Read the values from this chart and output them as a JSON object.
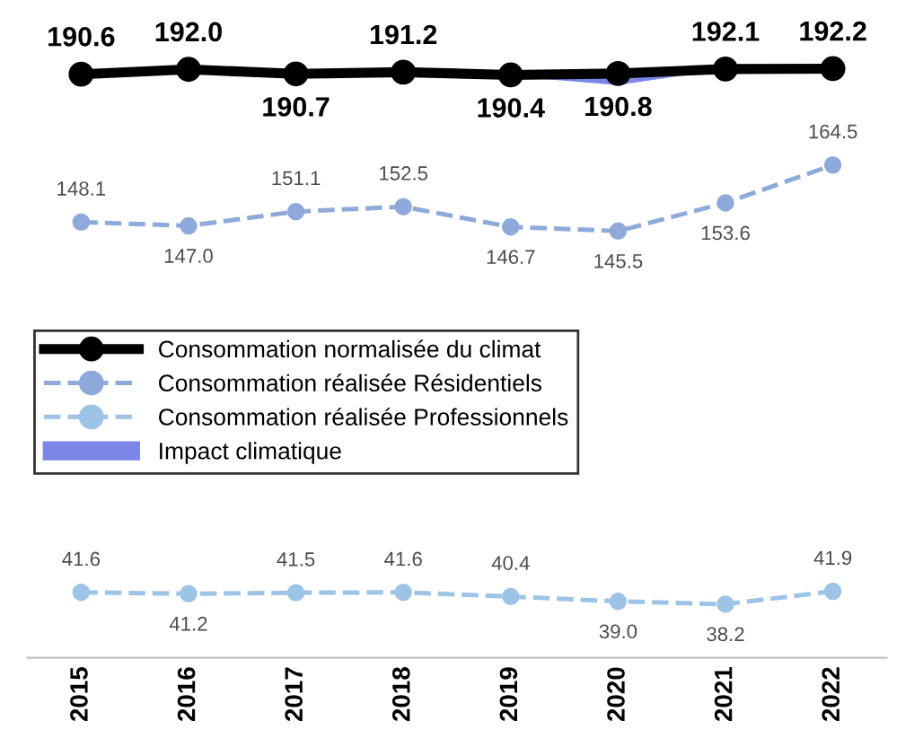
{
  "chart_data": {
    "type": "line",
    "categories": [
      "2015",
      "2016",
      "2017",
      "2018",
      "2019",
      "2020",
      "2021",
      "2022"
    ],
    "series": [
      {
        "name": "Consommation normalisée du climat",
        "color": "#000000",
        "line_style": "solid",
        "marker": "circle",
        "values": [
          190.6,
          192.0,
          190.7,
          191.2,
          190.4,
          190.8,
          192.1,
          192.2
        ],
        "value_labels": [
          "190.6",
          "192.0",
          "190.7",
          "191.2",
          "190.4",
          "190.8",
          "192.1",
          "192.2"
        ]
      },
      {
        "name": "Consommation réalisée Résidentiels",
        "color": "#8eaadb",
        "line_style": "dashed",
        "marker": "circle",
        "values": [
          148.1,
          147.0,
          151.1,
          152.5,
          146.7,
          145.5,
          153.6,
          164.5
        ],
        "value_labels": [
          "148.1",
          "147.0",
          "151.1",
          "152.5",
          "146.7",
          "145.5",
          "153.6",
          "164.5"
        ]
      },
      {
        "name": "Consommation réalisée Professionnels",
        "color": "#9dc3e6",
        "line_style": "dashed",
        "marker": "circle",
        "values": [
          41.6,
          41.2,
          41.5,
          41.6,
          40.4,
          39.0,
          38.2,
          41.9
        ],
        "value_labels": [
          "41.6",
          "41.2",
          "41.5",
          "41.6",
          "40.4",
          "39.0",
          "38.2",
          "41.9"
        ]
      },
      {
        "name": "Impact climatique",
        "type": "area",
        "color": "#7b86e8",
        "values": [
          190.6,
          191.6,
          190.7,
          191.0,
          190.0,
          187.5,
          192.1,
          192.2
        ]
      }
    ],
    "legend": "left",
    "grid": false,
    "tick_labels": "x"
  }
}
